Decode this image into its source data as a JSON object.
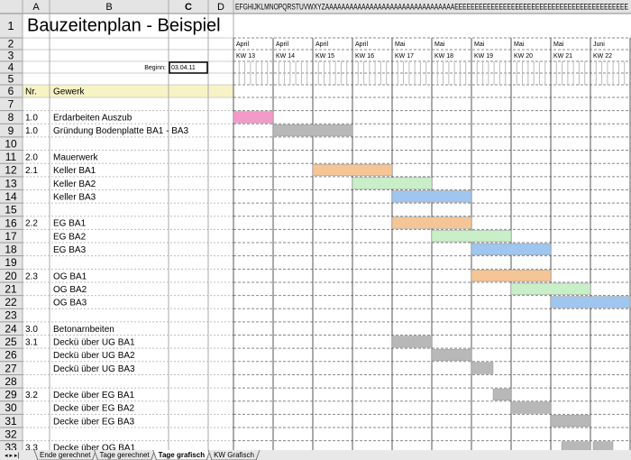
{
  "column_headers": [
    "A",
    "B",
    "C",
    "D"
  ],
  "column_letters_strip": "EFGHIJKLMNOPQRSTUVWXYZAAAAAAAAAAAAAAAAAAAAAAAAAAAAAAAAEEEEEEEEEEEEEEEEEEEEEEEEEEEEEEEEEEEEEEEEEEE",
  "title": "Bauzeitenplan - Beispiel",
  "start": {
    "label": "Beginn:",
    "value": "03.04.11"
  },
  "weeks": [
    {
      "month": "April",
      "kw": "KW 13"
    },
    {
      "month": "April",
      "kw": "KW 14"
    },
    {
      "month": "April",
      "kw": "KW 15"
    },
    {
      "month": "April",
      "kw": "KW 16"
    },
    {
      "month": "Mai",
      "kw": "KW 17"
    },
    {
      "month": "Mai",
      "kw": "KW 18"
    },
    {
      "month": "Mai",
      "kw": "KW 19"
    },
    {
      "month": "Mai",
      "kw": "KW 20"
    },
    {
      "month": "Mai",
      "kw": "KW 21"
    },
    {
      "month": "Juni",
      "kw": "KW 22"
    }
  ],
  "rows": [
    {
      "number": 1
    },
    {
      "number": 2
    },
    {
      "number": 3
    },
    {
      "number": 4
    },
    {
      "number": 5
    },
    {
      "number": 6,
      "nr": "Nr.",
      "task": "Gewerk"
    },
    {
      "number": 7
    },
    {
      "number": 8,
      "nr": "1.0",
      "task": "Erdarbeiten Auszub"
    },
    {
      "number": 9,
      "nr": "1.0",
      "task": "Gründung Bodenplatte BA1 - BA3"
    },
    {
      "number": 10
    },
    {
      "number": 11,
      "nr": "2.0",
      "task": "Mauerwerk"
    },
    {
      "number": 12,
      "nr": "2.1",
      "task": "Keller BA1"
    },
    {
      "number": 13,
      "task": "Keller BA2"
    },
    {
      "number": 14,
      "task": "Keller BA3"
    },
    {
      "number": 15
    },
    {
      "number": 16,
      "nr": "2.2",
      "task": "EG BA1"
    },
    {
      "number": 17,
      "task": "EG BA2"
    },
    {
      "number": 18,
      "task": "EG BA3"
    },
    {
      "number": 19
    },
    {
      "number": 20,
      "nr": "2.3",
      "task": "OG BA1"
    },
    {
      "number": 21,
      "task": "OG BA2"
    },
    {
      "number": 22,
      "task": "OG BA3"
    },
    {
      "number": 23
    },
    {
      "number": 24,
      "nr": "3.0",
      "task": "Betonarnbeiten"
    },
    {
      "number": 25,
      "nr": "3.1",
      "task": "Deckü über UG BA1"
    },
    {
      "number": 26,
      "task": "Deckü über UG BA2"
    },
    {
      "number": 27,
      "task": "Deckü über UG BA3"
    },
    {
      "number": 28
    },
    {
      "number": 29,
      "nr": "3.2",
      "task": "Decke über EG BA1"
    },
    {
      "number": 30,
      "task": "Decke über EG BA2"
    },
    {
      "number": 31,
      "task": "Decke über EG BA3"
    },
    {
      "number": 32
    },
    {
      "number": 33,
      "nr": "3.3",
      "task": "Decke über OG BA1"
    }
  ],
  "sheet_tabs": [
    "Ende gerechnet",
    "Tage gerechnet",
    "Tage grafisch",
    "KW Grafisch"
  ]
}
